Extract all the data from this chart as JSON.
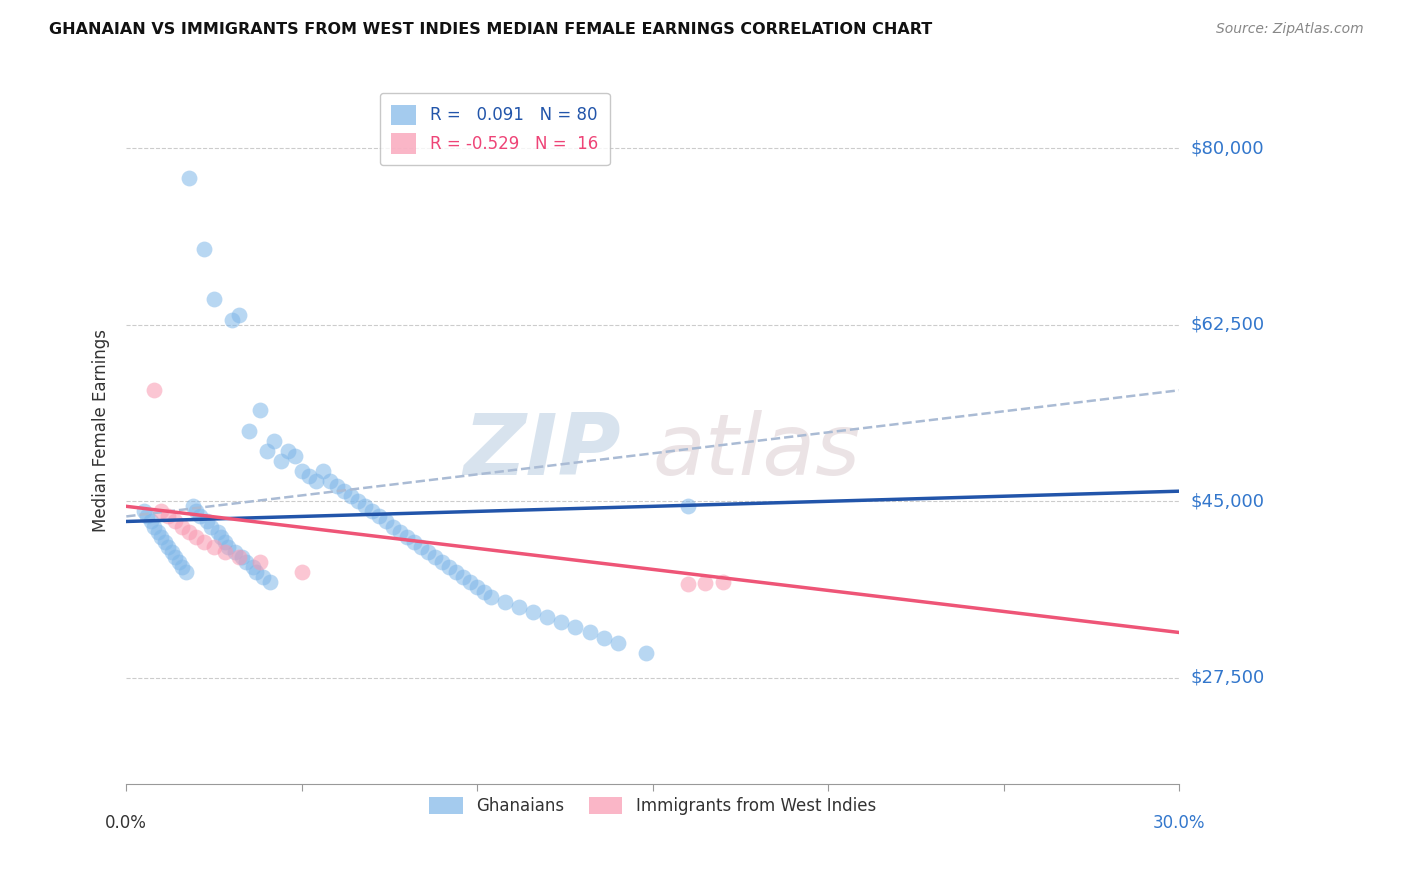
{
  "title": "GHANAIAN VS IMMIGRANTS FROM WEST INDIES MEDIAN FEMALE EARNINGS CORRELATION CHART",
  "source": "Source: ZipAtlas.com",
  "ylabel": "Median Female Earnings",
  "yticks": [
    27500,
    45000,
    62500,
    80000
  ],
  "ytick_labels": [
    "$27,500",
    "$45,000",
    "$62,500",
    "$80,000"
  ],
  "xlim": [
    0.0,
    0.3
  ],
  "ylim": [
    17000,
    87000
  ],
  "blue_color": "#7EB6E8",
  "pink_color": "#F898B0",
  "trendline_blue": "#2255AA",
  "trendline_pink": "#EE5577",
  "trendline_dashed_blue": "#AABBD4",
  "legend_R_blue": "0.091",
  "legend_N_blue": "80",
  "legend_R_pink": "-0.529",
  "legend_N_pink": "16",
  "watermark_line1": "ZIP",
  "watermark_line2": "atlas",
  "blue_scatter_x": [
    0.018,
    0.022,
    0.025,
    0.03,
    0.032,
    0.035,
    0.038,
    0.04,
    0.042,
    0.044,
    0.046,
    0.048,
    0.05,
    0.052,
    0.054,
    0.056,
    0.058,
    0.06,
    0.062,
    0.064,
    0.066,
    0.068,
    0.07,
    0.072,
    0.074,
    0.076,
    0.078,
    0.08,
    0.082,
    0.084,
    0.086,
    0.088,
    0.09,
    0.092,
    0.094,
    0.096,
    0.098,
    0.1,
    0.102,
    0.104,
    0.108,
    0.112,
    0.116,
    0.12,
    0.124,
    0.128,
    0.132,
    0.136,
    0.14,
    0.148,
    0.005,
    0.006,
    0.007,
    0.008,
    0.009,
    0.01,
    0.011,
    0.012,
    0.013,
    0.014,
    0.015,
    0.016,
    0.017,
    0.019,
    0.02,
    0.021,
    0.023,
    0.024,
    0.026,
    0.027,
    0.028,
    0.029,
    0.031,
    0.033,
    0.034,
    0.036,
    0.037,
    0.039,
    0.041,
    0.16
  ],
  "blue_scatter_y": [
    77000,
    70000,
    65000,
    63000,
    63500,
    52000,
    54000,
    50000,
    51000,
    49000,
    50000,
    49500,
    48000,
    47500,
    47000,
    48000,
    47000,
    46500,
    46000,
    45500,
    45000,
    44500,
    44000,
    43500,
    43000,
    42500,
    42000,
    41500,
    41000,
    40500,
    40000,
    39500,
    39000,
    38500,
    38000,
    37500,
    37000,
    36500,
    36000,
    35500,
    35000,
    34500,
    34000,
    33500,
    33000,
    32500,
    32000,
    31500,
    31000,
    30000,
    44000,
    43500,
    43000,
    42500,
    42000,
    41500,
    41000,
    40500,
    40000,
    39500,
    39000,
    38500,
    38000,
    44500,
    44000,
    43500,
    43000,
    42500,
    42000,
    41500,
    41000,
    40500,
    40000,
    39500,
    39000,
    38500,
    38000,
    37500,
    37000,
    44500
  ],
  "pink_scatter_x": [
    0.008,
    0.01,
    0.012,
    0.014,
    0.016,
    0.018,
    0.02,
    0.022,
    0.025,
    0.028,
    0.032,
    0.038,
    0.05,
    0.16,
    0.165,
    0.17
  ],
  "pink_scatter_y": [
    56000,
    44000,
    43500,
    43000,
    42500,
    42000,
    41500,
    41000,
    40500,
    40000,
    39500,
    39000,
    38000,
    36800,
    36900,
    37000
  ],
  "blue_trend_x0": 0.0,
  "blue_trend_x1": 0.3,
  "blue_trend_y0": 43000,
  "blue_trend_y1": 46000,
  "pink_trend_x0": 0.0,
  "pink_trend_x1": 0.3,
  "pink_trend_y0": 44500,
  "pink_trend_y1": 32000,
  "dash_trend_x0": 0.0,
  "dash_trend_x1": 0.3,
  "dash_trend_y0": 43500,
  "dash_trend_y1": 56000
}
